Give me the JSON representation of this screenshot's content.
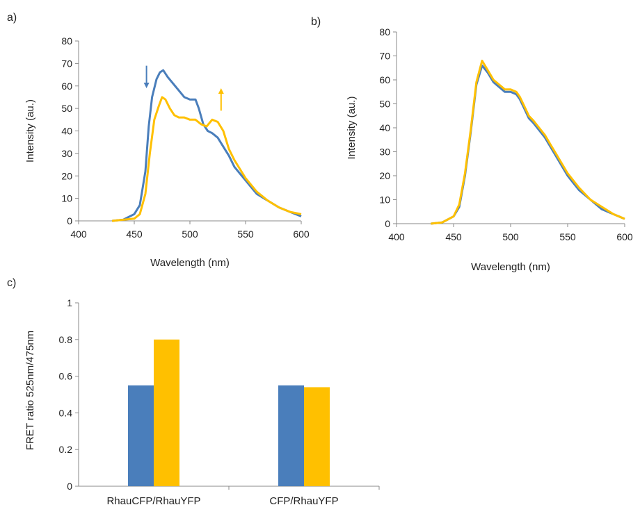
{
  "colors": {
    "series1": "#4a7ebb",
    "series2": "#ffc000",
    "axis": "#888888",
    "text": "#222222"
  },
  "chart_data": [
    {
      "panel_label": "a)",
      "type": "line",
      "xlabel": "Wavelength (nm)",
      "ylabel": "Intensity (au.)",
      "xlim": [
        400,
        600
      ],
      "ylim": [
        0,
        80
      ],
      "xticks": [
        "400",
        "450",
        "500",
        "550",
        "600"
      ],
      "yticks": [
        "0",
        "10",
        "20",
        "30",
        "40",
        "50",
        "60",
        "70",
        "80"
      ],
      "grid": false,
      "legend": "none",
      "annotations": [
        {
          "type": "arrow-down",
          "color": "#4a7ebb",
          "x": 461,
          "y_from": 59,
          "y_to": 69
        },
        {
          "type": "arrow-up",
          "color": "#ffc000",
          "x": 528,
          "y_from": 49,
          "y_to": 59
        }
      ],
      "series": [
        {
          "color": "#4a7ebb",
          "x": [
            430,
            440,
            450,
            455,
            460,
            463,
            466,
            470,
            473,
            476,
            480,
            485,
            490,
            495,
            500,
            505,
            508,
            512,
            516,
            520,
            525,
            530,
            535,
            540,
            545,
            550,
            555,
            560,
            570,
            580,
            590,
            600
          ],
          "y": [
            0,
            0.5,
            3,
            7,
            22,
            42,
            55,
            63,
            66,
            67,
            64,
            61,
            58,
            55,
            54,
            54,
            50,
            43,
            40,
            39,
            37,
            33,
            29,
            24,
            21,
            18,
            15,
            12,
            9,
            6,
            4,
            2
          ]
        },
        {
          "color": "#ffc000",
          "x": [
            430,
            440,
            450,
            455,
            460,
            464,
            468,
            472,
            475,
            478,
            482,
            486,
            490,
            495,
            500,
            505,
            510,
            515,
            520,
            525,
            530,
            535,
            540,
            545,
            550,
            555,
            560,
            570,
            580,
            590,
            600
          ],
          "y": [
            0,
            0.5,
            1,
            3,
            12,
            30,
            45,
            51,
            55,
            54,
            50,
            47,
            46,
            46,
            45,
            45,
            43,
            42,
            45,
            44,
            40,
            32,
            27,
            23,
            19,
            16,
            13,
            9,
            6,
            4,
            3
          ]
        }
      ]
    },
    {
      "panel_label": "b)",
      "type": "line",
      "xlabel": "Wavelength (nm)",
      "ylabel": "Intensity (au.)",
      "xlim": [
        400,
        600
      ],
      "ylim": [
        0,
        80
      ],
      "xticks": [
        "400",
        "450",
        "500",
        "550",
        "600"
      ],
      "yticks": [
        "0",
        "10",
        "20",
        "30",
        "40",
        "50",
        "60",
        "70",
        "80"
      ],
      "grid": false,
      "legend": "none",
      "series": [
        {
          "color": "#4a7ebb",
          "x": [
            430,
            440,
            450,
            455,
            460,
            465,
            470,
            475,
            480,
            485,
            490,
            495,
            500,
            505,
            508,
            512,
            516,
            520,
            525,
            530,
            535,
            540,
            545,
            550,
            555,
            560,
            570,
            580,
            590,
            600
          ],
          "y": [
            0,
            0.5,
            3,
            7,
            20,
            38,
            58,
            66,
            63,
            59,
            57,
            55,
            55,
            54,
            52,
            48,
            44,
            42,
            39,
            36,
            32,
            28,
            24,
            20,
            17,
            14,
            10,
            6,
            4,
            2
          ]
        },
        {
          "color": "#ffc000",
          "x": [
            430,
            440,
            450,
            455,
            460,
            465,
            470,
            475,
            480,
            485,
            490,
            495,
            500,
            505,
            508,
            512,
            516,
            520,
            525,
            530,
            535,
            540,
            545,
            550,
            555,
            560,
            570,
            580,
            590,
            600
          ],
          "y": [
            0,
            0.5,
            3,
            8,
            21,
            39,
            59,
            68,
            64,
            60,
            58,
            56,
            56,
            55,
            53,
            49,
            45,
            43,
            40,
            37,
            33,
            29,
            25,
            21,
            18,
            15,
            10,
            7,
            4,
            2
          ]
        }
      ]
    },
    {
      "panel_label": "c)",
      "type": "bar",
      "ylabel": "FRET ratio 525nm/475nm",
      "categories": [
        "RhauCFP/RhauYFP",
        "CFP/RhauYFP"
      ],
      "ylim": [
        0,
        1
      ],
      "yticks": [
        "0",
        "0.2",
        "0.4",
        "0.6",
        "0.8",
        "1"
      ],
      "grid": false,
      "legend": "none",
      "series": [
        {
          "color": "#4a7ebb",
          "values": [
            0.55,
            0.55
          ]
        },
        {
          "color": "#ffc000",
          "values": [
            0.8,
            0.54
          ]
        }
      ]
    }
  ]
}
